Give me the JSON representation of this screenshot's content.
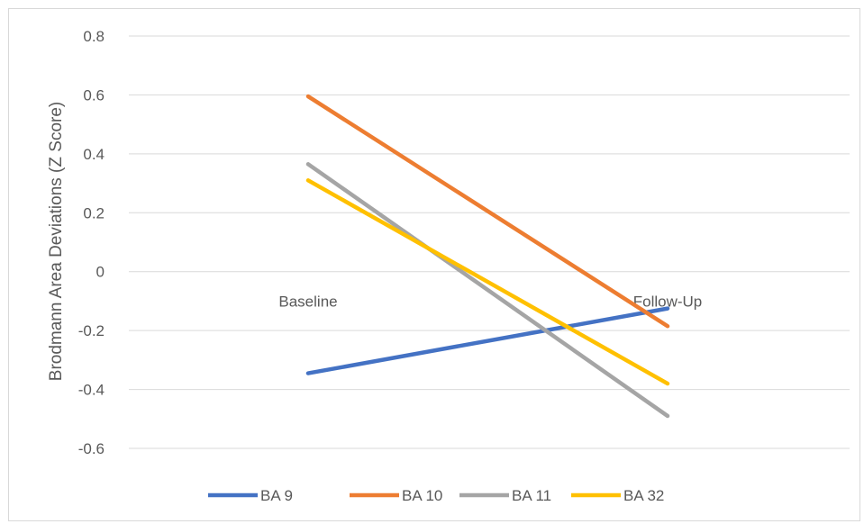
{
  "chart_data": {
    "type": "line",
    "categories": [
      "Baseline",
      "Follow-Up"
    ],
    "series": [
      {
        "name": "BA 9",
        "values": [
          -0.345,
          -0.125
        ],
        "color": "#4472C4"
      },
      {
        "name": "BA 10",
        "values": [
          0.595,
          -0.185
        ],
        "color": "#ED7D31"
      },
      {
        "name": "BA 11",
        "values": [
          0.365,
          -0.49
        ],
        "color": "#A5A5A5"
      },
      {
        "name": "BA 32",
        "values": [
          0.31,
          -0.38
        ],
        "color": "#FFC000"
      }
    ],
    "ylabel": "Brodmann Area Deviations (Z Score)",
    "xlabel": "",
    "ylim": [
      -0.6,
      0.8
    ],
    "yticks": [
      0.8,
      0.6,
      0.4,
      0.2,
      0,
      -0.2,
      -0.4,
      -0.6
    ],
    "ytick_labels": [
      "0.8",
      "0.6",
      "0.4",
      "0.2",
      "0",
      "-0.2",
      "-0.4",
      "-0.6"
    ],
    "grid": true,
    "legend_position": "bottom"
  }
}
